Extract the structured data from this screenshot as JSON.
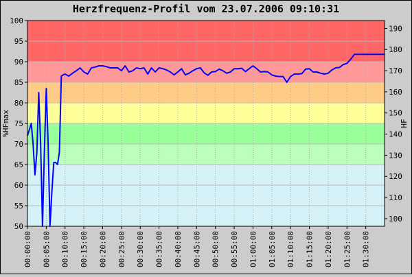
{
  "chart_data": {
    "type": "line",
    "title": "Herzfrequenz-Profil vom 23.07.2006 09:10:31",
    "ylabel": "%HFmax",
    "y2label": "HF",
    "ylim": [
      50,
      100
    ],
    "y2lim": [
      96.4,
      193.7
    ],
    "xlim_minutes": [
      0,
      95
    ],
    "grid": true,
    "y_ticks": [
      "50",
      "55",
      "60",
      "65",
      "70",
      "75",
      "80",
      "85",
      "90",
      "95",
      "100"
    ],
    "y2_ticks": [
      "100",
      "110",
      "120",
      "130",
      "140",
      "150",
      "160",
      "170",
      "180",
      "190"
    ],
    "x_ticks": [
      "00:00:00",
      "00:05:00",
      "00:10:00",
      "00:15:00",
      "00:20:00",
      "00:25:00",
      "00:30:00",
      "00:35:00",
      "00:40:00",
      "00:45:00",
      "00:50:00",
      "00:55:00",
      "01:00:00",
      "01:05:00",
      "01:10:00",
      "01:15:00",
      "01:20:00",
      "01:25:00",
      "01:30:00"
    ],
    "zones": [
      {
        "from": 90,
        "to": 100,
        "color": "#ff6666"
      },
      {
        "from": 85,
        "to": 90,
        "color": "#ff9999"
      },
      {
        "from": 80,
        "to": 85,
        "color": "#ffcc88"
      },
      {
        "from": 75,
        "to": 80,
        "color": "#ffff99"
      },
      {
        "from": 70,
        "to": 75,
        "color": "#99ff99"
      },
      {
        "from": 65,
        "to": 70,
        "color": "#bbffbb"
      },
      {
        "from": 50,
        "to": 65,
        "color": "#d4f2f7"
      }
    ],
    "series": [
      {
        "color": "#0000ff",
        "x": [
          0.0,
          0.7,
          1.0,
          1.5,
          2.0,
          2.5,
          3.0,
          3.5,
          4.0,
          4.5,
          5.0,
          5.5,
          6.0,
          6.5,
          7.0,
          7.5,
          8.0,
          8.5,
          9.0,
          9.5,
          10.0,
          11.0,
          12.0,
          13.0,
          14.0,
          15.0,
          16.0,
          17.0,
          18.0,
          19.0,
          20.0,
          21.0,
          22.0,
          23.0,
          24.0,
          25.0,
          26.0,
          27.0,
          28.0,
          29.0,
          30.0,
          31.0,
          32.0,
          33.0,
          34.0,
          35.0,
          36.0,
          37.0,
          38.0,
          39.0,
          40.0,
          41.0,
          42.0,
          43.0,
          44.0,
          45.0,
          46.0,
          47.0,
          48.0,
          49.0,
          50.0,
          51.0,
          52.0,
          53.0,
          54.0,
          55.0,
          56.0,
          57.0,
          58.0,
          59.0,
          60.0,
          61.0,
          62.0,
          63.0,
          64.0,
          65.0,
          66.0,
          67.0,
          68.0,
          69.0,
          70.0,
          71.0,
          72.0,
          73.0,
          74.0,
          75.0,
          76.0,
          77.0,
          78.0,
          79.0,
          80.0,
          81.0,
          82.0,
          83.0,
          84.0,
          85.0,
          86.0,
          87.0,
          88.0,
          89.0,
          90.0,
          91.0,
          92.0,
          93.0,
          94.0,
          95.0
        ],
        "y": [
          72.0,
          74.0,
          75.0,
          70.0,
          62.5,
          68.0,
          82.5,
          70.0,
          50.0,
          68.0,
          83.5,
          70.0,
          50.0,
          58.5,
          65.5,
          65.5,
          65.0,
          68.0,
          86.5,
          86.8,
          87.0,
          86.5,
          87.2,
          87.8,
          88.5,
          87.5,
          87.0,
          88.5,
          88.7,
          89.0,
          89.0,
          88.8,
          88.5,
          88.5,
          88.5,
          87.8,
          89.0,
          87.5,
          87.8,
          88.5,
          88.3,
          88.5,
          87.0,
          88.5,
          87.5,
          88.5,
          88.3,
          88.0,
          87.5,
          86.8,
          87.5,
          88.3,
          86.8,
          87.2,
          87.8,
          88.3,
          88.5,
          87.3,
          86.7,
          87.5,
          87.6,
          88.2,
          87.8,
          87.2,
          87.5,
          88.3,
          88.3,
          88.4,
          87.6,
          88.3,
          89.0,
          88.3,
          87.5,
          87.6,
          87.5,
          86.8,
          86.5,
          86.4,
          86.4,
          85.0,
          86.4,
          87.0,
          87.0,
          87.1,
          88.2,
          88.3,
          87.5,
          87.5,
          87.2,
          87.0,
          87.2,
          88.0,
          88.5,
          88.6,
          89.3,
          89.6,
          90.6,
          91.8,
          91.8,
          91.8,
          91.8,
          91.8,
          91.8,
          91.8,
          91.8,
          91.8
        ]
      }
    ]
  }
}
